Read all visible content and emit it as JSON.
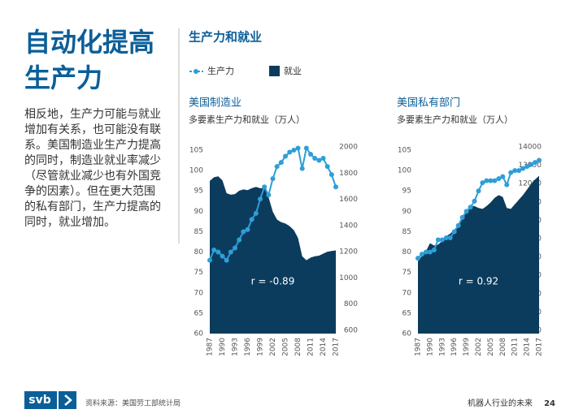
{
  "page": {
    "title": "自动化提高生产力",
    "body": "相反地，生产力可能与就业增加有关系，也可能没有联系。美国制造业生产力提高的同时，制造业就业率减少（尽管就业减少也有外国竞争的因素）。但在更大范围的私有部门，生产力提高的同时，就业增加。",
    "section": "生产力和就业",
    "logo": "svb",
    "source": "资料来源：美国劳工部统计局",
    "footer": "机器人行业的未来",
    "page_number": "24"
  },
  "chart_data": [
    {
      "type": "line",
      "title": "美国制造业",
      "subtitle": "多要素生产力和就业（万人）",
      "annotation": "r = -0.89",
      "x": [
        1987,
        1988,
        1989,
        1990,
        1991,
        1992,
        1993,
        1994,
        1995,
        1996,
        1997,
        1998,
        1999,
        2000,
        2001,
        2002,
        2003,
        2004,
        2005,
        2006,
        2007,
        2008,
        2009,
        2010,
        2011,
        2012,
        2013,
        2014,
        2015,
        2016,
        2017
      ],
      "xlim": [
        1987,
        2017
      ],
      "xticks": [
        1987,
        1990,
        1993,
        1996,
        1999,
        2002,
        2005,
        2008,
        2011,
        2014,
        2017
      ],
      "ylim": [
        60,
        105
      ],
      "yticks": [
        60,
        65,
        70,
        75,
        80,
        85,
        90,
        95,
        100,
        105
      ],
      "y2lim": [
        600,
        2000
      ],
      "y2ticks": [
        600,
        800,
        1000,
        1200,
        1400,
        1600,
        1800,
        2000
      ],
      "series": [
        {
          "name": "就业",
          "color": "#0b3c5d",
          "axis": "y2",
          "fill": true,
          "values": [
            1765,
            1793,
            1800,
            1770,
            1672,
            1660,
            1665,
            1690,
            1700,
            1695,
            1710,
            1720,
            1710,
            1710,
            1640,
            1530,
            1470,
            1450,
            1440,
            1420,
            1390,
            1330,
            1190,
            1160,
            1180,
            1190,
            1195,
            1210,
            1225,
            1230,
            1235
          ]
        },
        {
          "name": "生产力",
          "color": "#2e9ed8",
          "axis": "y",
          "values": [
            78,
            80.5,
            80,
            79,
            78,
            80,
            81,
            83,
            85,
            85.5,
            88,
            89.5,
            93,
            96,
            94,
            98,
            101,
            102,
            103.5,
            104.5,
            105,
            105.5,
            100.5,
            105.5,
            104,
            103,
            102.5,
            103,
            101,
            99,
            96
          ]
        }
      ]
    },
    {
      "type": "line",
      "title": "美国私有部门",
      "subtitle": "多要素生产力和就业（万人）",
      "annotation": "r = 0.92",
      "x": [
        1987,
        1988,
        1989,
        1990,
        1991,
        1992,
        1993,
        1994,
        1995,
        1996,
        1997,
        1998,
        1999,
        2000,
        2001,
        2002,
        2003,
        2004,
        2005,
        2006,
        2007,
        2008,
        2009,
        2010,
        2011,
        2012,
        2013,
        2014,
        2015,
        2016,
        2017
      ],
      "xlim": [
        1987,
        2017
      ],
      "xticks": [
        1987,
        1990,
        1993,
        1996,
        1999,
        2002,
        2005,
        2008,
        2011,
        2014,
        2017
      ],
      "ylim": [
        60,
        105
      ],
      "yticks": [
        60,
        65,
        70,
        75,
        80,
        85,
        90,
        95,
        100,
        105
      ],
      "y2lim": [
        4000,
        14000
      ],
      "y2ticks": [
        4000,
        5000,
        6000,
        7000,
        8000,
        9000,
        10000,
        11000,
        12000,
        13000,
        14000
      ],
      "series": [
        {
          "name": "就业",
          "color": "#0b3c5d",
          "axis": "y2",
          "fill": true,
          "values": [
            7940,
            8250,
            8500,
            8930,
            8800,
            8850,
            9050,
            9300,
            9450,
            9650,
            9950,
            10250,
            10600,
            10970,
            10950,
            10850,
            10800,
            10950,
            11150,
            11400,
            11550,
            11450,
            10850,
            10800,
            11050,
            11300,
            11550,
            11850,
            12150,
            12400,
            12600
          ]
        },
        {
          "name": "生产力",
          "color": "#2e9ed8",
          "axis": "y",
          "values": [
            78.5,
            79.5,
            80,
            80,
            80.5,
            83,
            83,
            83.5,
            83.5,
            85,
            86.5,
            88.5,
            90,
            91,
            92.5,
            95,
            97,
            97.5,
            97.5,
            97.5,
            98,
            98.5,
            96.5,
            99.5,
            100,
            100,
            100.5,
            101,
            101.5,
            102,
            102.5
          ]
        }
      ]
    }
  ]
}
